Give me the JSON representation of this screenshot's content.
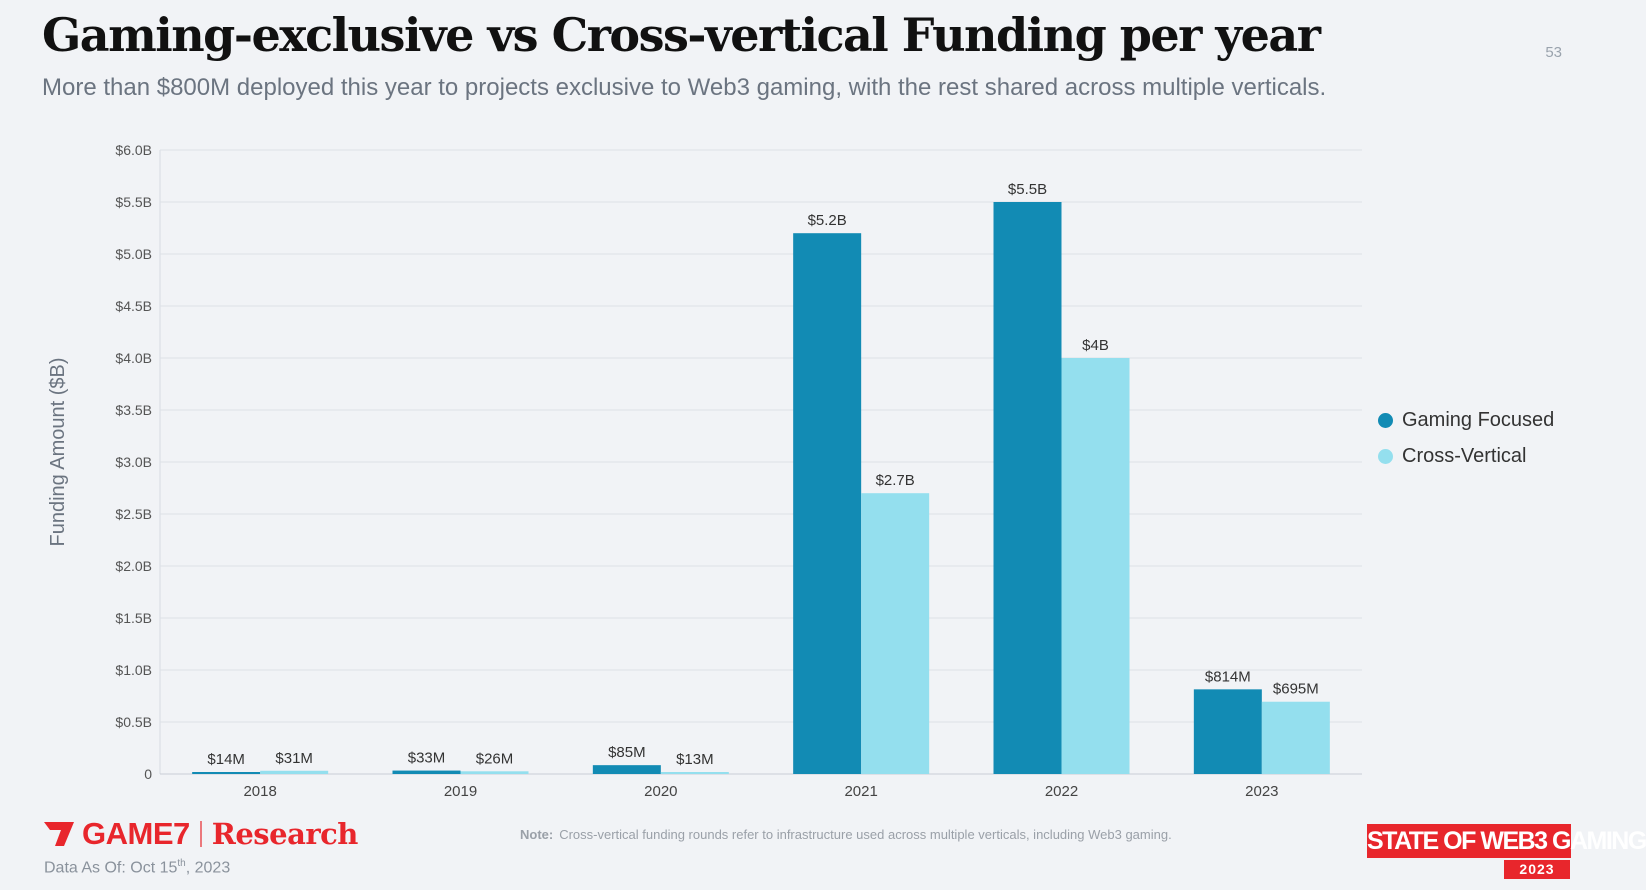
{
  "header": {
    "title": "Gaming-exclusive vs Cross-vertical Funding per year",
    "subtitle": "More than $800M deployed this year to projects exclusive to Web3 gaming, with the rest shared across multiple verticals.",
    "page_number": "53"
  },
  "chart_data": {
    "type": "bar",
    "categories": [
      "2018",
      "2019",
      "2020",
      "2021",
      "2022",
      "2023"
    ],
    "series": [
      {
        "name": "Gaming Focused",
        "color": "#128bb4",
        "values": [
          0.014,
          0.033,
          0.085,
          5.2,
          5.5,
          0.814
        ],
        "labels": [
          "$14M",
          "$33M",
          "$85M",
          "$5.2B",
          "$5.5B",
          "$814M"
        ]
      },
      {
        "name": "Cross-Vertical",
        "color": "#94dfee",
        "values": [
          0.031,
          0.026,
          0.013,
          2.7,
          4.0,
          0.695
        ],
        "labels": [
          "$31M",
          "$26M",
          "$13M",
          "$2.7B",
          "$4B",
          "$695M"
        ]
      }
    ],
    "ylabel": "Funding Amount ($B)",
    "ylim": [
      0,
      6
    ],
    "yticks": [
      0,
      0.5,
      1,
      1.5,
      2,
      2.5,
      3,
      3.5,
      4,
      4.5,
      5,
      5.5,
      6
    ],
    "ytick_labels": [
      "0",
      "$0.5B",
      "$1.0B",
      "$1.5B",
      "$2.0B",
      "$2.5B",
      "$3.0B",
      "$3.5B",
      "$4.0B",
      "$4.5B",
      "$5.0B",
      "$5.5B",
      "$6.0B"
    ],
    "grid": true,
    "legend_position": "right"
  },
  "footer": {
    "brand_name": "GAME7",
    "brand_division": "Research",
    "data_date_prefix": "Data As Of: Oct 15",
    "data_date_suffix": "th",
    "data_date_year": ", 2023",
    "note_label": "Note:",
    "note_text": "Cross-vertical funding rounds refer to infrastructure used across multiple verticals, including Web3 gaming.",
    "report_logo_text": "STATE OF WEB3 GAMING",
    "report_logo_year": "2023"
  },
  "colors": {
    "brand_red": "#e8262c",
    "gaming_focused": "#128bb4",
    "cross_vertical": "#94dfee"
  }
}
